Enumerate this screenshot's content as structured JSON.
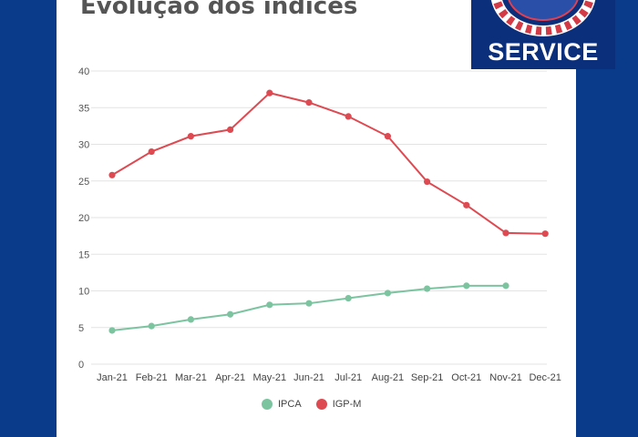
{
  "title": "Evolução dos índices",
  "logo": {
    "text": "SERVICE"
  },
  "colors": {
    "ipca": "#7cc4a0",
    "igpm": "#dd4a52",
    "background": "#0a3a8a"
  },
  "chart_data": {
    "type": "line",
    "title": "Evolução dos índices",
    "xlabel": "",
    "ylabel": "",
    "categories": [
      "Jan-21",
      "Feb-21",
      "Mar-21",
      "Apr-21",
      "May-21",
      "Jun-21",
      "Jul-21",
      "Aug-21",
      "Sep-21",
      "Oct-21",
      "Nov-21",
      "Dec-21"
    ],
    "ylim": [
      0,
      40
    ],
    "yticks": [
      "0",
      "5",
      "10",
      "15",
      "20",
      "25",
      "30",
      "35",
      "40"
    ],
    "grid": true,
    "legend_position": "bottom",
    "series": [
      {
        "name": "IPCA",
        "color": "#7cc4a0",
        "values": [
          4.6,
          5.2,
          6.1,
          6.8,
          8.1,
          8.3,
          9.0,
          9.7,
          10.3,
          10.7,
          10.7,
          null
        ]
      },
      {
        "name": "IGP-M",
        "color": "#dd4a52",
        "values": [
          25.8,
          29.0,
          31.1,
          32.0,
          37.0,
          35.7,
          33.8,
          31.1,
          24.9,
          21.7,
          17.9,
          17.8
        ]
      }
    ]
  }
}
